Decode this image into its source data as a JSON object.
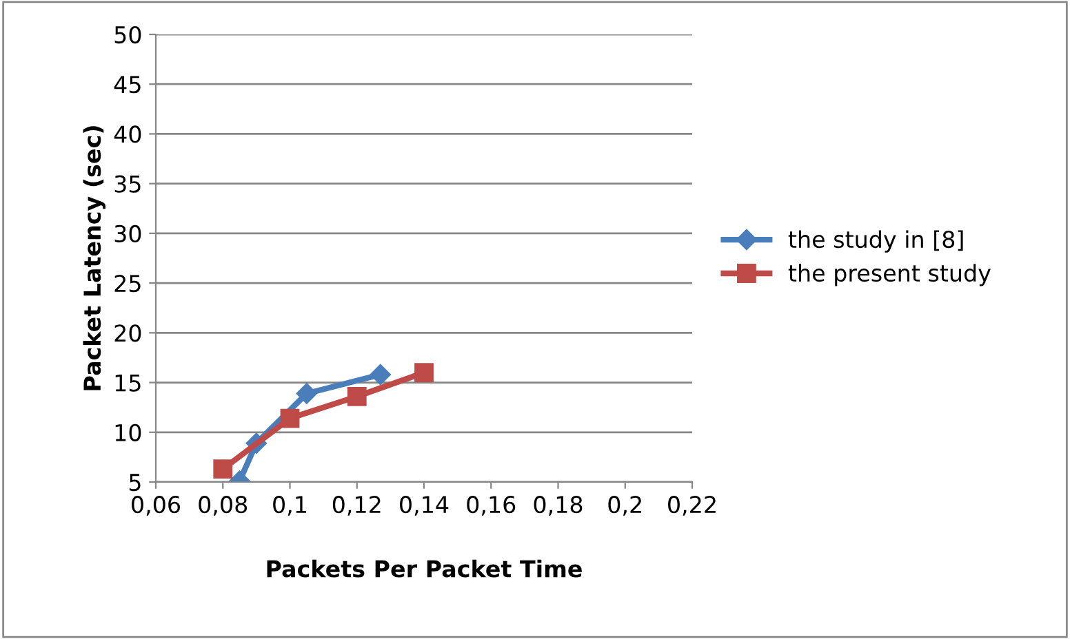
{
  "chart_data": {
    "type": "line",
    "xlabel": "Packets Per Packet Time",
    "ylabel": "Packet Latency (sec)",
    "series": [
      {
        "name": "the study in [8]",
        "color": "#4a7ebb",
        "marker": "diamond",
        "x": [
          0.085,
          0.09,
          0.105,
          0.127
        ],
        "values": [
          5.1,
          8.9,
          13.9,
          15.8
        ]
      },
      {
        "name": "the present study",
        "color": "#be4b48",
        "marker": "square",
        "x": [
          0.08,
          0.1,
          0.12,
          0.14
        ],
        "values": [
          6.3,
          11.4,
          13.6,
          16.0
        ]
      }
    ],
    "xlim": [
      0.06,
      0.22
    ],
    "xticks": [
      {
        "value": 0.06,
        "label": "0,06"
      },
      {
        "value": 0.08,
        "label": "0,08"
      },
      {
        "value": 0.1,
        "label": "0,1"
      },
      {
        "value": 0.12,
        "label": "0,12"
      },
      {
        "value": 0.14,
        "label": "0,14"
      },
      {
        "value": 0.16,
        "label": "0,16"
      },
      {
        "value": 0.18,
        "label": "0,18"
      },
      {
        "value": 0.2,
        "label": "0,2"
      },
      {
        "value": 0.22,
        "label": "0,22"
      }
    ],
    "ylim": [
      5,
      50
    ],
    "yticks": [
      5,
      10,
      15,
      20,
      25,
      30,
      35,
      40,
      45,
      50
    ],
    "grid": "y",
    "legend": "right"
  }
}
